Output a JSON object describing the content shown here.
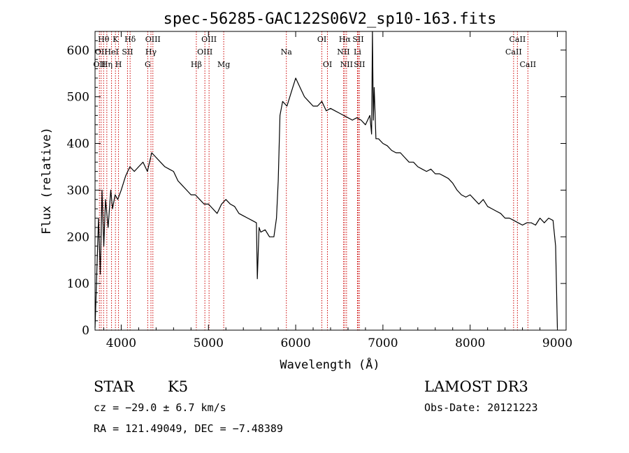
{
  "chart_data": {
    "type": "line",
    "title": "spec-56285-GAC122S06V2_sp10-163.fits",
    "xlabel": "Wavelength (Å)",
    "ylabel": "Flux (relative)",
    "xlim": [
      3700,
      9100
    ],
    "ylim": [
      0,
      640
    ],
    "x_ticks": [
      4000,
      5000,
      6000,
      7000,
      8000,
      9000
    ],
    "y_ticks": [
      0,
      100,
      200,
      300,
      400,
      500,
      600
    ],
    "line_color": "#000000",
    "marker_color": "#cc0000",
    "series": [
      {
        "name": "flux",
        "x": [
          3700,
          3740,
          3760,
          3780,
          3800,
          3820,
          3850,
          3880,
          3900,
          3930,
          3960,
          4000,
          4050,
          4100,
          4150,
          4200,
          4250,
          4300,
          4350,
          4400,
          4450,
          4500,
          4550,
          4600,
          4650,
          4700,
          4750,
          4800,
          4850,
          4900,
          4950,
          5000,
          5050,
          5100,
          5150,
          5200,
          5250,
          5300,
          5350,
          5400,
          5450,
          5500,
          5550,
          5560,
          5580,
          5600,
          5650,
          5700,
          5750,
          5780,
          5800,
          5820,
          5850,
          5900,
          5950,
          6000,
          6050,
          6100,
          6150,
          6200,
          6250,
          6300,
          6350,
          6400,
          6450,
          6500,
          6550,
          6600,
          6650,
          6700,
          6750,
          6800,
          6850,
          6870,
          6880,
          6890,
          6900,
          6920,
          6950,
          7000,
          7050,
          7100,
          7150,
          7200,
          7250,
          7300,
          7350,
          7400,
          7450,
          7500,
          7550,
          7600,
          7650,
          7700,
          7750,
          7800,
          7850,
          7900,
          7950,
          8000,
          8050,
          8100,
          8150,
          8200,
          8250,
          8300,
          8350,
          8400,
          8450,
          8500,
          8550,
          8600,
          8650,
          8700,
          8750,
          8800,
          8850,
          8900,
          8950,
          8980,
          9000
        ],
        "y": [
          5,
          240,
          120,
          300,
          180,
          280,
          220,
          300,
          260,
          290,
          280,
          300,
          330,
          350,
          340,
          350,
          360,
          340,
          380,
          370,
          360,
          350,
          345,
          340,
          320,
          310,
          300,
          290,
          290,
          280,
          270,
          270,
          260,
          250,
          270,
          280,
          270,
          265,
          250,
          245,
          240,
          235,
          230,
          110,
          220,
          210,
          215,
          200,
          200,
          240,
          320,
          460,
          490,
          480,
          510,
          540,
          520,
          500,
          490,
          480,
          480,
          490,
          470,
          475,
          470,
          465,
          460,
          455,
          450,
          455,
          450,
          440,
          460,
          420,
          640,
          450,
          520,
          410,
          410,
          400,
          395,
          385,
          380,
          380,
          370,
          360,
          360,
          350,
          345,
          340,
          345,
          335,
          335,
          330,
          325,
          315,
          300,
          290,
          285,
          290,
          280,
          270,
          280,
          265,
          260,
          255,
          250,
          240,
          240,
          235,
          230,
          225,
          230,
          230,
          225,
          240,
          230,
          240,
          235,
          180,
          5
        ]
      }
    ],
    "line_markers": [
      {
        "wl": 3750,
        "label": "OII",
        "row": 3
      },
      {
        "wl": 3770,
        "label": "OII",
        "row": 2
      },
      {
        "wl": 3798,
        "label": "Hθ",
        "row": 1
      },
      {
        "wl": 3835,
        "label": "Hη",
        "row": 3
      },
      {
        "wl": 3889,
        "label": "HeI",
        "row": 2
      },
      {
        "wl": 3934,
        "label": "K",
        "row": 1
      },
      {
        "wl": 3969,
        "label": "H",
        "row": 3
      },
      {
        "wl": 4072,
        "label": "SII",
        "row": 2
      },
      {
        "wl": 4102,
        "label": "Hδ",
        "row": 1
      },
      {
        "wl": 4304,
        "label": "G",
        "row": 3
      },
      {
        "wl": 4341,
        "label": "Hγ",
        "row": 2
      },
      {
        "wl": 4363,
        "label": "OIII",
        "row": 1
      },
      {
        "wl": 4861,
        "label": "Hβ",
        "row": 3
      },
      {
        "wl": 4959,
        "label": "OIII",
        "row": 2
      },
      {
        "wl": 5007,
        "label": "OIII",
        "row": 1
      },
      {
        "wl": 5175,
        "label": "Mg",
        "row": 3
      },
      {
        "wl": 5893,
        "label": "Na",
        "row": 2
      },
      {
        "wl": 6300,
        "label": "OI",
        "row": 1
      },
      {
        "wl": 6364,
        "label": "OI",
        "row": 3
      },
      {
        "wl": 6548,
        "label": "NII",
        "row": 2
      },
      {
        "wl": 6563,
        "label": "Hα",
        "row": 1
      },
      {
        "wl": 6583,
        "label": "NII",
        "row": 3
      },
      {
        "wl": 6708,
        "label": "Li",
        "row": 2
      },
      {
        "wl": 6716,
        "label": "SII",
        "row": 1
      },
      {
        "wl": 6731,
        "label": "SII",
        "row": 3
      },
      {
        "wl": 8498,
        "label": "CaII",
        "row": 2
      },
      {
        "wl": 8542,
        "label": "CaII",
        "row": 1
      },
      {
        "wl": 8662,
        "label": "CaII",
        "row": 3
      }
    ]
  },
  "info": {
    "object_class": "STAR",
    "subclass": "K5",
    "survey": "LAMOST DR3",
    "cz": "cz = −29.0 ± 6.7 km/s",
    "obs_date": "Obs-Date: 20121223",
    "coords": "RA = 121.49049, DEC =  −7.48389"
  }
}
